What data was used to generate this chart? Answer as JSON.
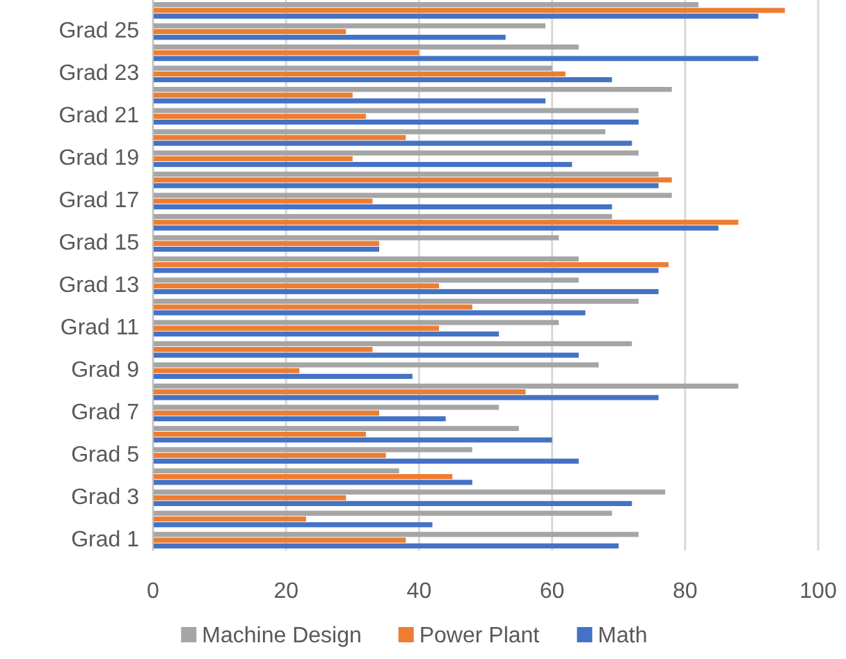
{
  "chart_data": {
    "type": "bar",
    "orientation": "horizontal",
    "categories": [
      null,
      "Grad 25",
      null,
      "Grad 23",
      null,
      "Grad 21",
      null,
      "Grad 19",
      null,
      "Grad 17",
      null,
      "Grad 15",
      null,
      "Grad 13",
      null,
      "Grad 11",
      null,
      "Grad 9",
      null,
      "Grad 7",
      null,
      "Grad 5",
      null,
      "Grad 3",
      null,
      "Grad 1"
    ],
    "series": [
      {
        "name": "Machine Design",
        "color": "#a5a5a5",
        "values": [
          82,
          59,
          64,
          60,
          78,
          73,
          68,
          73,
          76,
          78,
          69,
          61,
          64,
          64,
          73,
          61,
          72,
          67,
          88,
          52,
          55,
          48,
          37,
          77,
          69,
          73
        ]
      },
      {
        "name": "Power Plant",
        "color": "#ed7d31",
        "values": [
          95,
          29,
          40,
          62,
          30,
          32,
          38,
          30,
          78,
          33,
          88,
          34,
          77.5,
          43,
          48,
          43,
          33,
          22,
          56,
          34,
          32,
          35,
          45,
          29,
          23,
          38
        ]
      },
      {
        "name": "Math",
        "color": "#4472c4",
        "values": [
          91,
          53,
          91,
          69,
          59,
          73,
          72,
          63,
          76,
          69,
          85,
          34,
          76,
          76,
          65,
          52,
          64,
          39,
          76,
          44,
          60,
          64,
          48,
          72,
          42,
          70
        ]
      }
    ],
    "xlim": [
      0,
      100
    ],
    "xticks": [
      0,
      20,
      40,
      60,
      80,
      100
    ],
    "grid": "x",
    "legend": "bottom"
  }
}
